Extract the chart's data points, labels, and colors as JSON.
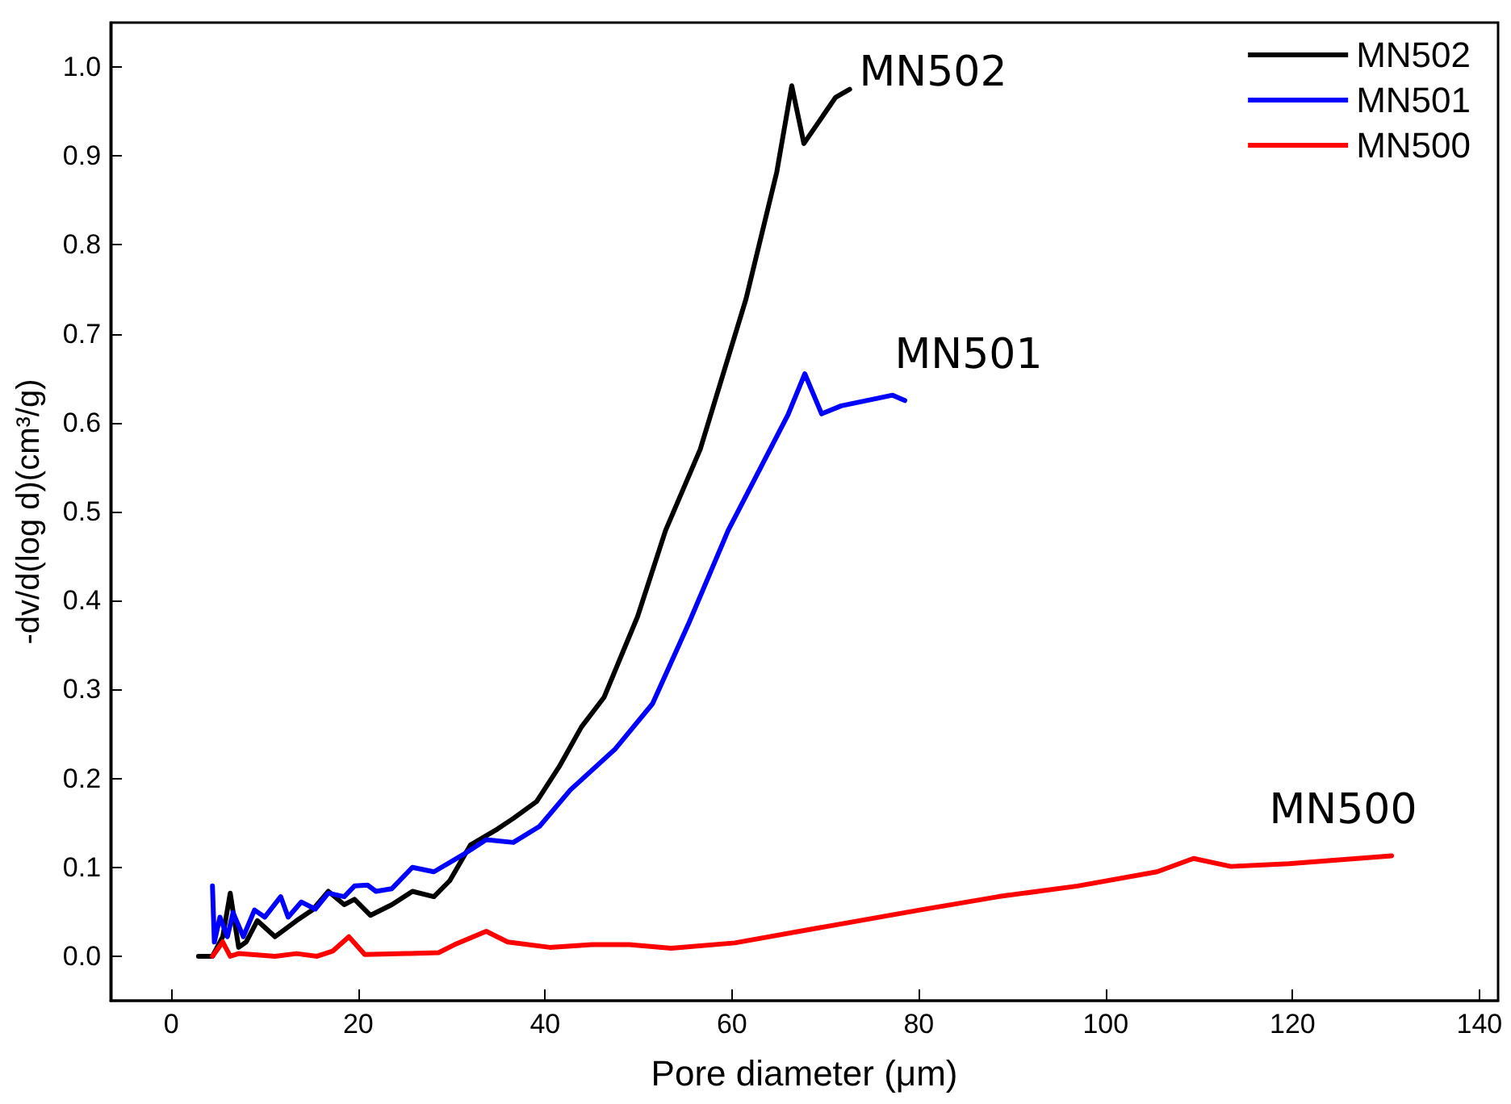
{
  "chart_data": {
    "type": "line",
    "xlabel": "Pore diameter (μm)",
    "ylabel": "-dv/d(log d)(cm³/g)",
    "xlim": [
      -6.5,
      142
    ],
    "xticks": [
      0,
      20,
      40,
      60,
      80,
      100,
      120,
      140
    ],
    "ylim": [
      -0.05,
      1.05
    ],
    "yticks": [
      {
        "value": 0,
        "label": "0.0"
      },
      0.1,
      0.2,
      0.3,
      0.4,
      0.5,
      0.6,
      0.7,
      0.8,
      0.9,
      {
        "value": 1,
        "label": "1.0"
      }
    ],
    "legend": "top right",
    "marker": "none",
    "line_style": "solid",
    "annotations": [
      "MN502",
      "MN501",
      "MN500"
    ],
    "series": [
      {
        "name": "MN502",
        "color": "#000000",
        "x": [
          2.9,
          4.4,
          5.5,
          6.3,
          7.2,
          8,
          9.2,
          11.1,
          13.4,
          15.1,
          16.8,
          18.5,
          19.6,
          21.3,
          23.6,
          25.8,
          28.1,
          29.8,
          32,
          34.9,
          36.6,
          39.1,
          41.5,
          43.9,
          46.3,
          49.9,
          52.9,
          56.6,
          61.5,
          64.8,
          66.4,
          67.7,
          71.1,
          72.6
        ],
        "values": [
          0,
          0,
          0.022,
          0.071,
          0.01,
          0.016,
          0.04,
          0.022,
          0.04,
          0.052,
          0.073,
          0.058,
          0.064,
          0.046,
          0.058,
          0.073,
          0.067,
          0.085,
          0.125,
          0.143,
          0.155,
          0.174,
          0.213,
          0.258,
          0.291,
          0.382,
          0.479,
          0.57,
          0.739,
          0.882,
          0.979,
          0.914,
          0.966,
          0.975
        ]
      },
      {
        "name": "MN501",
        "color": "#0000ff",
        "x": [
          4.4,
          4.6,
          5.2,
          6,
          6.6,
          7.7,
          8.9,
          10,
          11.7,
          12.5,
          13.9,
          15.4,
          16.8,
          18.5,
          19.6,
          21,
          21.9,
          23.6,
          25.8,
          28.1,
          31.5,
          33.7,
          36.6,
          39.4,
          42.7,
          47.5,
          51.5,
          55.4,
          59.6,
          66,
          67.8,
          69.6,
          71.7,
          77.2,
          78.5
        ],
        "values": [
          0.079,
          0.016,
          0.044,
          0.022,
          0.049,
          0.022,
          0.052,
          0.044,
          0.067,
          0.044,
          0.061,
          0.053,
          0.071,
          0.067,
          0.079,
          0.08,
          0.073,
          0.076,
          0.1,
          0.095,
          0.116,
          0.131,
          0.128,
          0.146,
          0.187,
          0.233,
          0.284,
          0.375,
          0.479,
          0.609,
          0.655,
          0.61,
          0.619,
          0.631,
          0.625
        ]
      },
      {
        "name": "MN500",
        "color": "#ff0000",
        "x": [
          4.4,
          5.5,
          6.3,
          7.2,
          11.1,
          13.4,
          15.6,
          17.3,
          19,
          20.7,
          25.2,
          28.6,
          30.3,
          33.7,
          36,
          40.5,
          45,
          49,
          53.5,
          60.3,
          68.8,
          80.1,
          88.5,
          97,
          105.5,
          109.4,
          113.4,
          119.6,
          130.6
        ],
        "values": [
          0,
          0.016,
          0,
          0.003,
          0,
          0.003,
          0,
          0.006,
          0.022,
          0.002,
          0.003,
          0.004,
          0.013,
          0.028,
          0.016,
          0.01,
          0.013,
          0.013,
          0.009,
          0.015,
          0.031,
          0.052,
          0.067,
          0.079,
          0.095,
          0.11,
          0.101,
          0.104,
          0.113
        ]
      }
    ]
  }
}
